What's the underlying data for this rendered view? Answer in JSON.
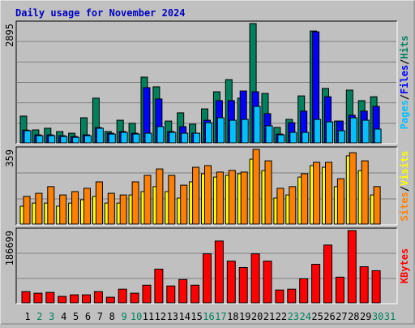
{
  "chart_data": [
    {
      "type": "bar",
      "title": "Daily usage for November 2024",
      "separator": "/",
      "ylim": [
        0,
        2895
      ],
      "yticks": [
        2895
      ],
      "series": [
        {
          "name": "Hits",
          "color": "#00805c",
          "values": [
            650,
            315,
            355,
            275,
            235,
            610,
            1085,
            275,
            550,
            475,
            1595,
            1360,
            530,
            730,
            455,
            825,
            1240,
            1535,
            1085,
            2895,
            1200,
            375,
            570,
            1140,
            2715,
            1320,
            530,
            1280,
            1025,
            1120,
            null
          ]
        },
        {
          "name": "Files",
          "color": "#0000ff",
          "values": [
            310,
            195,
            195,
            175,
            155,
            195,
            370,
            235,
            275,
            235,
            1340,
            1065,
            275,
            395,
            235,
            550,
            1025,
            1025,
            1260,
            1240,
            710,
            215,
            490,
            770,
            2695,
            1120,
            530,
            670,
            770,
            885,
            null
          ]
        },
        {
          "name": "Pages",
          "color": "#00c0ff",
          "values": [
            295,
            175,
            175,
            155,
            135,
            175,
            355,
            215,
            255,
            215,
            235,
            395,
            255,
            235,
            235,
            490,
            610,
            550,
            570,
            885,
            415,
            195,
            255,
            255,
            570,
            510,
            295,
            610,
            550,
            335,
            null
          ]
        }
      ]
    },
    {
      "type": "bar",
      "separator": "/",
      "ylim": [
        0,
        359
      ],
      "yticks": [
        359
      ],
      "series": [
        {
          "name": "Visits",
          "color": "#ffff00",
          "values": [
            86,
            101,
            101,
            86,
            101,
            117,
            133,
            101,
            101,
            140,
            156,
            180,
            156,
            125,
            203,
            242,
            226,
            234,
            242,
            312,
            257,
            125,
            140,
            226,
            281,
            273,
            180,
            328,
            257,
            140,
            null
          ]
        },
        {
          "name": "Sites",
          "color": "#ff8000",
          "values": [
            133,
            148,
            180,
            140,
            156,
            172,
            203,
            148,
            140,
            203,
            234,
            265,
            234,
            187,
            273,
            281,
            250,
            258,
            250,
            359,
            304,
            172,
            180,
            242,
            297,
            297,
            218,
            343,
            304,
            180,
            null
          ]
        }
      ]
    },
    {
      "type": "bar",
      "ylim": [
        0,
        186699
      ],
      "yticks": [
        186699
      ],
      "categories": [
        "1",
        "2",
        "3",
        "4",
        "5",
        "6",
        "7",
        "8",
        "9",
        "10",
        "11",
        "12",
        "13",
        "14",
        "15",
        "16",
        "17",
        "18",
        "19",
        "20",
        "21",
        "22",
        "23",
        "24",
        "25",
        "26",
        "27",
        "28",
        "29",
        "30",
        "31"
      ],
      "category_colors": [
        "#000000",
        "#00805c",
        "#00805c",
        "#000000",
        "#000000",
        "#000000",
        "#000000",
        "#000000",
        "#00805c",
        "#00805c",
        "#000000",
        "#000000",
        "#000000",
        "#000000",
        "#000000",
        "#00805c",
        "#00805c",
        "#000000",
        "#000000",
        "#000000",
        "#000000",
        "#000000",
        "#00805c",
        "#00805c",
        "#000000",
        "#000000",
        "#000000",
        "#000000",
        "#000000",
        "#00805c",
        "#00805c"
      ],
      "series": [
        {
          "name": "KBytes",
          "color": "#ff0000",
          "values": [
            29000,
            24900,
            27000,
            16600,
            20700,
            20700,
            29000,
            14500,
            35300,
            24900,
            45600,
            87100,
            43600,
            60100,
            45600,
            126500,
            159700,
            107800,
            91300,
            126500,
            107800,
            33200,
            35300,
            62200,
            99600,
            149300,
            66400,
            186699,
            93300,
            83000,
            null
          ]
        }
      ]
    }
  ]
}
